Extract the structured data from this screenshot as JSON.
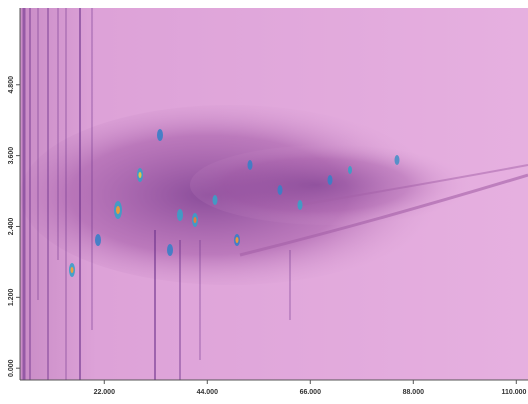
{
  "chart_data": {
    "type": "heatmap",
    "xlim": [
      4,
      112.5
    ],
    "xticks": [
      {
        "value": 22,
        "label": "22.000"
      },
      {
        "value": 44,
        "label": "44.000"
      },
      {
        "value": 66,
        "label": "66.000"
      },
      {
        "value": 88,
        "label": "88.000"
      },
      {
        "value": 110,
        "label": "110.000"
      }
    ],
    "ylim": [
      -0.2,
      6.1
    ],
    "yticks": [
      {
        "value": 0,
        "label": "0.000"
      },
      {
        "value": 1.2,
        "label": "1.200"
      },
      {
        "value": 2.4,
        "label": "2.400"
      },
      {
        "value": 3.6,
        "label": "3.600"
      },
      {
        "value": 4.8,
        "label": "4.800"
      }
    ],
    "color": "#e2a6dc"
  }
}
